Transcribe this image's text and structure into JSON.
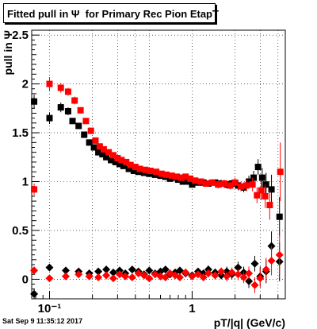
{
  "title": "Fitted pull in Ψ  for Primary Rec Pion EtapT",
  "timestamp": "Sat Sep  9 11:35:12 2017",
  "colors": {
    "black": "#000000",
    "red": "#ff0000",
    "grid": "#000000"
  },
  "chart_data": {
    "type": "scatter",
    "title": "Fitted pull in Ψ  for Primary Rec Pion EtapT",
    "xlabel": "pT/|q| (GeV/c)",
    "ylabel": "pull in Ψ",
    "xscale": "log",
    "xlim": [
      0.075,
      4.5
    ],
    "ylim": [
      -0.2,
      2.55
    ],
    "grid": true,
    "legend": "none",
    "x_ticks": [
      {
        "value": 0.1,
        "label": "10⁻¹"
      },
      {
        "value": 1,
        "label": "1"
      }
    ],
    "y_ticks": [
      0,
      0.5,
      1,
      1.5,
      2,
      2.5
    ],
    "series": [
      {
        "marker": "square",
        "color": "#000000",
        "points": [
          [
            0.078,
            1.82,
            0.07
          ],
          [
            0.1,
            1.65,
            0.06
          ],
          [
            0.12,
            1.76,
            0.05
          ],
          [
            0.135,
            1.72,
            0.04
          ],
          [
            0.145,
            1.62,
            0.03
          ],
          [
            0.16,
            1.57,
            0.03
          ],
          [
            0.175,
            1.48,
            0.03
          ],
          [
            0.19,
            1.4,
            0.02
          ],
          [
            0.205,
            1.35,
            0.02
          ],
          [
            0.22,
            1.3,
            0.02
          ],
          [
            0.235,
            1.28,
            0.02
          ],
          [
            0.25,
            1.25,
            0.02
          ],
          [
            0.27,
            1.22,
            0.02
          ],
          [
            0.29,
            1.2,
            0.02
          ],
          [
            0.31,
            1.18,
            0.02
          ],
          [
            0.33,
            1.16,
            0.02
          ],
          [
            0.36,
            1.13,
            0.02
          ],
          [
            0.39,
            1.11,
            0.02
          ],
          [
            0.42,
            1.1,
            0.02
          ],
          [
            0.46,
            1.09,
            0.02
          ],
          [
            0.5,
            1.08,
            0.02
          ],
          [
            0.55,
            1.07,
            0.02
          ],
          [
            0.6,
            1.06,
            0.02
          ],
          [
            0.65,
            1.05,
            0.02
          ],
          [
            0.7,
            1.03,
            0.02
          ],
          [
            0.75,
            1.04,
            0.02
          ],
          [
            0.8,
            1.02,
            0.02
          ],
          [
            0.86,
            1.0,
            0.03
          ],
          [
            0.92,
            1.0,
            0.03
          ],
          [
            1.0,
            0.97,
            0.03
          ],
          [
            1.1,
            0.99,
            0.03
          ],
          [
            1.2,
            0.99,
            0.03
          ],
          [
            1.3,
            0.98,
            0.03
          ],
          [
            1.45,
            0.99,
            0.03
          ],
          [
            1.6,
            0.98,
            0.04
          ],
          [
            1.75,
            0.97,
            0.04
          ],
          [
            1.9,
            0.98,
            0.04
          ],
          [
            2.1,
            0.96,
            0.05
          ],
          [
            2.3,
            0.94,
            0.05
          ],
          [
            2.5,
            1.0,
            0.06
          ],
          [
            2.7,
            1.04,
            0.07
          ],
          [
            2.9,
            1.15,
            0.08
          ],
          [
            3.1,
            1.04,
            0.1
          ],
          [
            3.3,
            0.97,
            0.12
          ],
          [
            3.6,
            0.92,
            0.15
          ],
          [
            4.1,
            0.64,
            0.2
          ]
        ]
      },
      {
        "marker": "square",
        "color": "#ff0000",
        "points": [
          [
            0.078,
            0.92,
            0.06
          ],
          [
            0.1,
            2.0,
            0.07
          ],
          [
            0.12,
            1.96,
            0.05
          ],
          [
            0.135,
            1.92,
            0.04
          ],
          [
            0.15,
            1.83,
            0.04
          ],
          [
            0.165,
            1.73,
            0.03
          ],
          [
            0.18,
            1.62,
            0.03
          ],
          [
            0.195,
            1.52,
            0.03
          ],
          [
            0.21,
            1.42,
            0.02
          ],
          [
            0.225,
            1.36,
            0.02
          ],
          [
            0.24,
            1.33,
            0.02
          ],
          [
            0.26,
            1.3,
            0.02
          ],
          [
            0.28,
            1.27,
            0.02
          ],
          [
            0.3,
            1.24,
            0.02
          ],
          [
            0.32,
            1.22,
            0.02
          ],
          [
            0.345,
            1.2,
            0.02
          ],
          [
            0.37,
            1.17,
            0.02
          ],
          [
            0.4,
            1.15,
            0.02
          ],
          [
            0.43,
            1.13,
            0.02
          ],
          [
            0.47,
            1.12,
            0.02
          ],
          [
            0.51,
            1.11,
            0.02
          ],
          [
            0.56,
            1.1,
            0.02
          ],
          [
            0.61,
            1.08,
            0.02
          ],
          [
            0.66,
            1.07,
            0.02
          ],
          [
            0.72,
            1.06,
            0.02
          ],
          [
            0.78,
            1.05,
            0.02
          ],
          [
            0.84,
            1.04,
            0.02
          ],
          [
            0.9,
            1.05,
            0.03
          ],
          [
            0.97,
            1.03,
            0.03
          ],
          [
            1.05,
            1.01,
            0.03
          ],
          [
            1.15,
            1.0,
            0.03
          ],
          [
            1.25,
            0.98,
            0.03
          ],
          [
            1.38,
            0.99,
            0.03
          ],
          [
            1.52,
            0.97,
            0.04
          ],
          [
            1.68,
            0.98,
            0.04
          ],
          [
            1.85,
            0.96,
            0.04
          ],
          [
            2.0,
            0.99,
            0.05
          ],
          [
            2.2,
            0.95,
            0.05
          ],
          [
            2.4,
            0.96,
            0.06
          ],
          [
            2.65,
            0.97,
            0.07
          ],
          [
            2.85,
            0.86,
            0.08
          ],
          [
            3.05,
            0.91,
            0.1
          ],
          [
            3.25,
            0.85,
            0.12
          ],
          [
            3.5,
            0.76,
            0.15
          ],
          [
            4.15,
            1.1,
            0.3
          ]
        ]
      },
      {
        "marker": "diamond",
        "color": "#000000",
        "points": [
          [
            0.078,
            -0.15,
            0.05
          ],
          [
            0.1,
            0.12,
            0.03
          ],
          [
            0.13,
            0.09,
            0.03
          ],
          [
            0.16,
            0.08,
            0.02
          ],
          [
            0.19,
            0.06,
            0.02
          ],
          [
            0.22,
            0.08,
            0.02
          ],
          [
            0.25,
            0.1,
            0.02
          ],
          [
            0.28,
            0.07,
            0.02
          ],
          [
            0.31,
            0.09,
            0.02
          ],
          [
            0.34,
            0.06,
            0.02
          ],
          [
            0.38,
            0.1,
            0.02
          ],
          [
            0.42,
            0.08,
            0.02
          ],
          [
            0.46,
            0.05,
            0.02
          ],
          [
            0.5,
            0.09,
            0.02
          ],
          [
            0.55,
            0.06,
            0.02
          ],
          [
            0.6,
            0.08,
            0.02
          ],
          [
            0.65,
            0.1,
            0.02
          ],
          [
            0.7,
            0.05,
            0.03
          ],
          [
            0.76,
            0.07,
            0.03
          ],
          [
            0.82,
            0.09,
            0.03
          ],
          [
            0.9,
            0.06,
            0.03
          ],
          [
            1.0,
            0.04,
            0.03
          ],
          [
            1.1,
            0.08,
            0.03
          ],
          [
            1.2,
            0.06,
            0.03
          ],
          [
            1.3,
            0.1,
            0.04
          ],
          [
            1.45,
            0.07,
            0.04
          ],
          [
            1.6,
            0.04,
            0.04
          ],
          [
            1.75,
            0.08,
            0.05
          ],
          [
            1.9,
            0.05,
            0.05
          ],
          [
            2.1,
            0.12,
            0.06
          ],
          [
            2.3,
            0.07,
            0.06
          ],
          [
            2.5,
            -0.02,
            0.07
          ],
          [
            2.75,
            0.16,
            0.08
          ],
          [
            3.0,
            0.03,
            0.1
          ],
          [
            3.3,
            0.08,
            0.12
          ],
          [
            3.6,
            0.34,
            0.15
          ],
          [
            4.1,
            0.18,
            0.2
          ]
        ]
      },
      {
        "marker": "diamond",
        "color": "#ff0000",
        "points": [
          [
            0.078,
            0.09,
            0.04
          ],
          [
            0.1,
            0.01,
            0.03
          ],
          [
            0.13,
            0.03,
            0.03
          ],
          [
            0.16,
            0.05,
            0.02
          ],
          [
            0.19,
            0.03,
            0.02
          ],
          [
            0.22,
            0.02,
            0.02
          ],
          [
            0.25,
            0.04,
            0.02
          ],
          [
            0.28,
            0.01,
            0.02
          ],
          [
            0.31,
            0.05,
            0.02
          ],
          [
            0.34,
            0.03,
            0.02
          ],
          [
            0.38,
            0.02,
            0.02
          ],
          [
            0.42,
            0.06,
            0.02
          ],
          [
            0.46,
            0.04,
            0.02
          ],
          [
            0.5,
            0.01,
            0.02
          ],
          [
            0.55,
            0.05,
            0.02
          ],
          [
            0.6,
            0.03,
            0.02
          ],
          [
            0.65,
            0.02,
            0.02
          ],
          [
            0.7,
            0.06,
            0.03
          ],
          [
            0.76,
            0.04,
            0.03
          ],
          [
            0.82,
            0.02,
            0.03
          ],
          [
            0.9,
            0.07,
            0.03
          ],
          [
            1.0,
            0.03,
            0.03
          ],
          [
            1.1,
            0.05,
            0.03
          ],
          [
            1.2,
            0.02,
            0.03
          ],
          [
            1.3,
            0.06,
            0.04
          ],
          [
            1.45,
            0.04,
            0.04
          ],
          [
            1.6,
            0.08,
            0.04
          ],
          [
            1.75,
            0.03,
            0.05
          ],
          [
            1.9,
            0.07,
            0.05
          ],
          [
            2.1,
            0.05,
            0.06
          ],
          [
            2.3,
            0.02,
            0.06
          ],
          [
            2.5,
            0.06,
            0.07
          ],
          [
            2.75,
            -0.06,
            0.08
          ],
          [
            3.0,
            0.01,
            0.1
          ],
          [
            3.3,
            0.1,
            0.12
          ],
          [
            3.6,
            0.19,
            0.15
          ],
          [
            4.1,
            0.25,
            0.2
          ]
        ]
      }
    ]
  }
}
